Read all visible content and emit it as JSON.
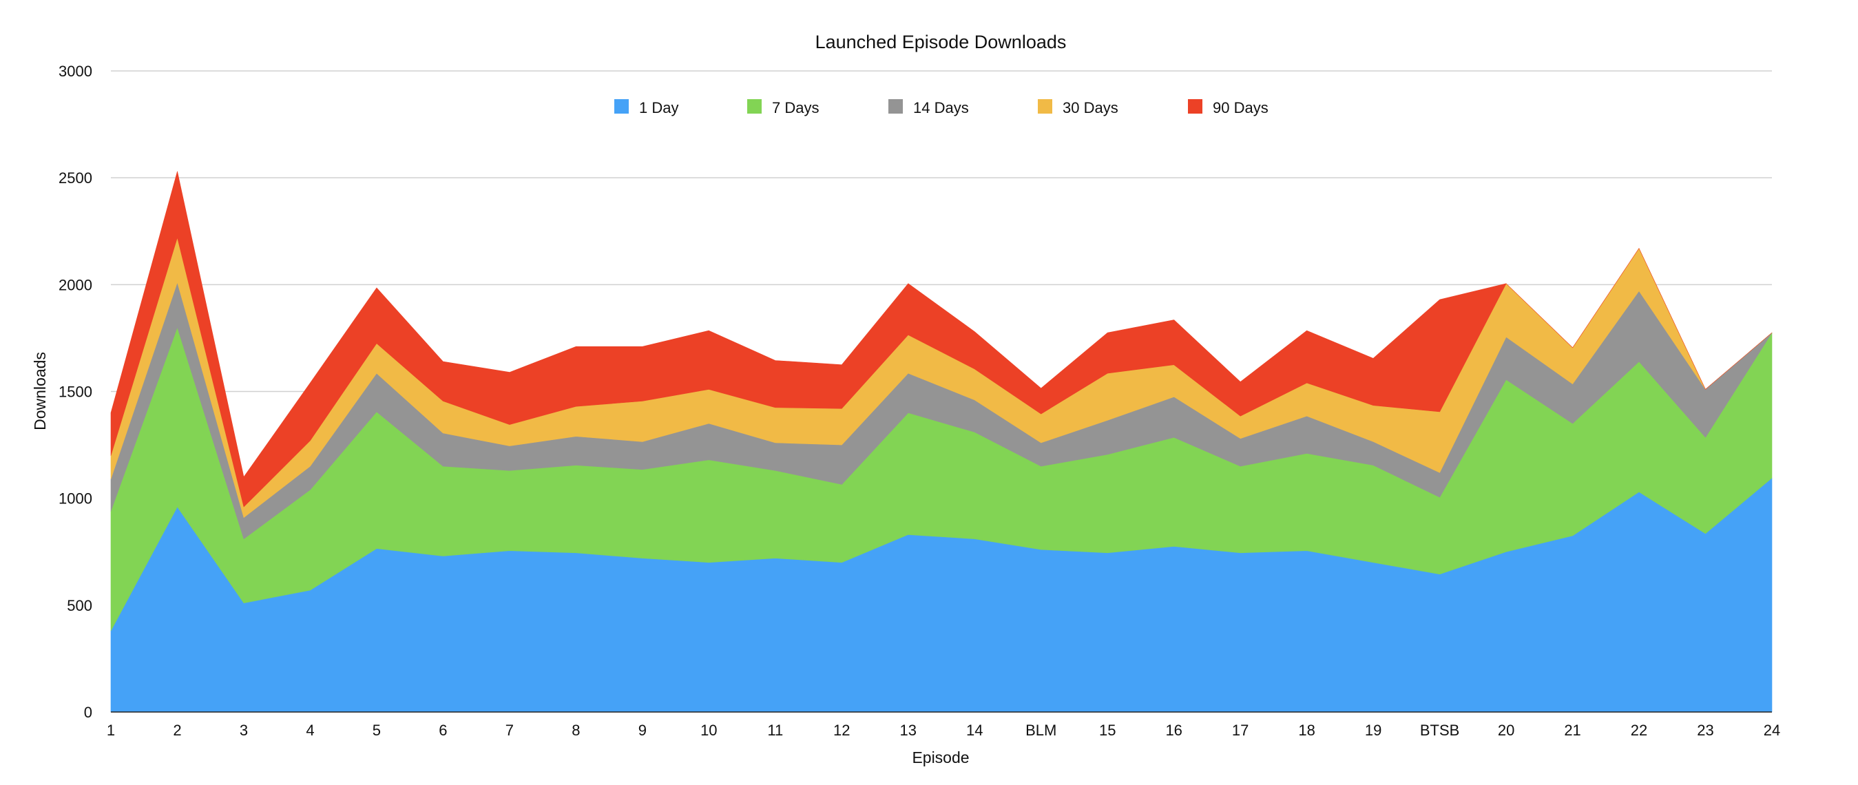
{
  "chart_data": {
    "type": "area",
    "stacked": true,
    "title": "Launched Episode Downloads",
    "xlabel": "Episode",
    "ylabel": "Downloads",
    "ylim": [
      0,
      3000
    ],
    "yticks": [
      0,
      500,
      1000,
      1500,
      2000,
      2500,
      3000
    ],
    "grid": true,
    "legend_position": "top-center",
    "categories": [
      "1",
      "2",
      "3",
      "4",
      "5",
      "6",
      "7",
      "8",
      "9",
      "10",
      "11",
      "12",
      "13",
      "14",
      "BLM",
      "15",
      "16",
      "17",
      "18",
      "19",
      "BTSB",
      "20",
      "21",
      "22",
      "23",
      "24"
    ],
    "series": [
      {
        "name": "1 Day",
        "color": "#45a2f7",
        "values": [
          380,
          960,
          510,
          570,
          765,
          730,
          755,
          745,
          720,
          700,
          720,
          700,
          830,
          810,
          760,
          745,
          775,
          745,
          755,
          700,
          645,
          750,
          825,
          1030,
          835,
          1095
        ]
      },
      {
        "name": "7 Days",
        "color": "#82d454",
        "values": [
          560,
          840,
          300,
          470,
          640,
          420,
          375,
          410,
          415,
          480,
          410,
          365,
          570,
          500,
          390,
          460,
          510,
          405,
          455,
          455,
          360,
          805,
          525,
          610,
          450,
          680
        ]
      },
      {
        "name": "14 Days",
        "color": "#949494",
        "values": [
          150,
          210,
          100,
          110,
          180,
          155,
          115,
          135,
          130,
          170,
          130,
          185,
          185,
          150,
          110,
          160,
          190,
          130,
          175,
          110,
          115,
          200,
          185,
          330,
          225,
          0
        ]
      },
      {
        "name": "30 Days",
        "color": "#f1ba46",
        "values": [
          110,
          210,
          50,
          120,
          140,
          150,
          100,
          140,
          190,
          160,
          165,
          170,
          180,
          145,
          135,
          220,
          150,
          105,
          155,
          170,
          285,
          250,
          170,
          200,
          0,
          0
        ]
      },
      {
        "name": "90 Days",
        "color": "#ec4126",
        "values": [
          200,
          310,
          140,
          270,
          260,
          185,
          245,
          280,
          255,
          275,
          220,
          205,
          240,
          175,
          120,
          190,
          210,
          160,
          245,
          220,
          525,
          0,
          0,
          0,
          0,
          0
        ]
      }
    ]
  }
}
